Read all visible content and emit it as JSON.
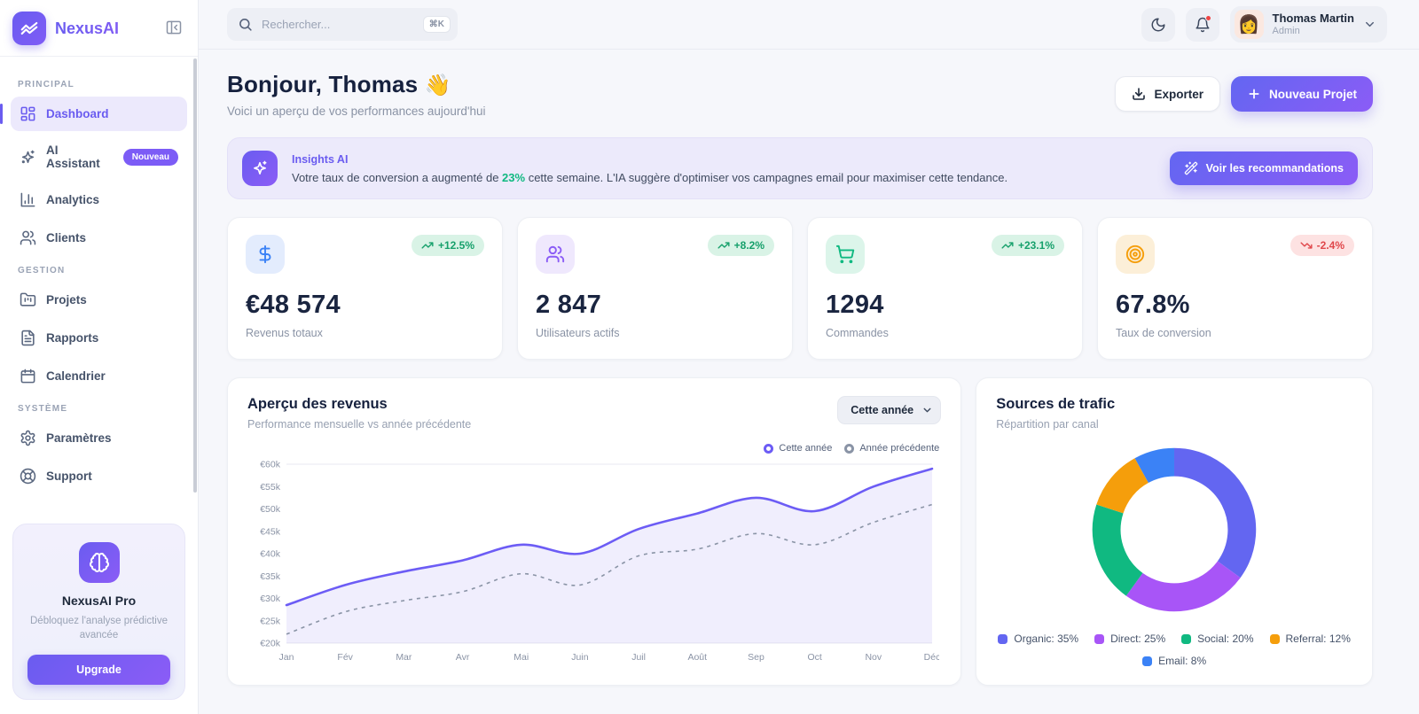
{
  "app": {
    "name": "NexusAI",
    "accent": "#6a5cf0"
  },
  "sidebar": {
    "sections": [
      {
        "label": "PRINCIPAL",
        "items": [
          {
            "label": "Dashboard",
            "icon": "dashboard-icon",
            "active": true
          },
          {
            "label": "AI Assistant",
            "icon": "sparkles-icon",
            "badge": "Nouveau"
          },
          {
            "label": "Analytics",
            "icon": "bar-chart-icon"
          },
          {
            "label": "Clients",
            "icon": "users-icon"
          }
        ]
      },
      {
        "label": "GESTION",
        "items": [
          {
            "label": "Projets",
            "icon": "folder-icon"
          },
          {
            "label": "Rapports",
            "icon": "file-icon"
          },
          {
            "label": "Calendrier",
            "icon": "calendar-icon"
          }
        ]
      },
      {
        "label": "SYSTÈME",
        "items": [
          {
            "label": "Paramètres",
            "icon": "gear-icon"
          },
          {
            "label": "Support",
            "icon": "life-buoy-icon"
          }
        ]
      }
    ],
    "pro_card": {
      "title": "NexusAI Pro",
      "description": "Débloquez l'analyse prédictive avancée",
      "button": "Upgrade",
      "icon": "brain-icon"
    }
  },
  "topbar": {
    "search": {
      "placeholder": "Rechercher...",
      "shortcut": "⌘K"
    },
    "user": {
      "name": "Thomas Martin",
      "role": "Admin",
      "avatar": "👩"
    }
  },
  "header": {
    "greeting": "Bonjour, Thomas",
    "wave": "👋",
    "subtitle": "Voici un aperçu de vos performances aujourd'hui",
    "export_label": "Exporter",
    "new_project_label": "Nouveau Projet"
  },
  "insights": {
    "title": "Insights AI",
    "text_before": "Votre taux de conversion a augmenté de ",
    "highlight": "23%",
    "text_after": " cette semaine. L'IA suggère d'optimiser vos campagnes email pour maximiser cette tendance.",
    "button": "Voir les recommandations"
  },
  "stats": [
    {
      "icon": "dollar-icon",
      "icon_color": "#3b82f6",
      "icon_bg": "#e3ecfd",
      "trend": "+12.5%",
      "trend_dir": "up",
      "value": "€48 574",
      "label": "Revenus totaux"
    },
    {
      "icon": "users-icon",
      "icon_color": "#8b5cf6",
      "icon_bg": "#efe8fd",
      "trend": "+8.2%",
      "trend_dir": "up",
      "value": "2 847",
      "label": "Utilisateurs actifs"
    },
    {
      "icon": "cart-icon",
      "icon_color": "#10b981",
      "icon_bg": "#dcf5ea",
      "trend": "+23.1%",
      "trend_dir": "up",
      "value": "1294",
      "label": "Commandes"
    },
    {
      "icon": "target-icon",
      "icon_color": "#f59e0b",
      "icon_bg": "#fcefd8",
      "trend": "-2.4%",
      "trend_dir": "down",
      "value": "67.8%",
      "label": "Taux de conversion"
    }
  ],
  "chart_data": [
    {
      "type": "area",
      "title": "Aperçu des revenus",
      "subtitle": "Performance mensuelle vs année précédente",
      "select_value": "Cette année",
      "x": [
        "Jan",
        "Fév",
        "Mar",
        "Avr",
        "Mai",
        "Juin",
        "Juil",
        "Août",
        "Sep",
        "Oct",
        "Nov",
        "Déc"
      ],
      "series": [
        {
          "name": "Cette année",
          "color": "#6c5cf5",
          "style": "solid",
          "values": [
            28.5,
            33,
            36,
            38.5,
            42,
            40,
            45.5,
            49,
            52.5,
            49.5,
            55,
            59
          ]
        },
        {
          "name": "Année précédente",
          "color": "#8a94a6",
          "style": "dashed",
          "values": [
            22,
            27,
            29.5,
            31.5,
            35.5,
            33,
            39.5,
            41,
            44.5,
            42,
            47,
            51
          ]
        }
      ],
      "unit": "k€",
      "ylim": [
        20,
        60
      ],
      "ytick_step": 5,
      "ytick_format": "€{v}k",
      "grid": false,
      "legend_position": "top-right"
    },
    {
      "type": "pie",
      "donut": true,
      "title": "Sources de trafic",
      "subtitle": "Répartition par canal",
      "segments": [
        {
          "label": "Organic",
          "value": 35,
          "color": "#6366f1"
        },
        {
          "label": "Direct",
          "value": 25,
          "color": "#a855f7"
        },
        {
          "label": "Social",
          "value": 20,
          "color": "#10b981"
        },
        {
          "label": "Referral",
          "value": 12,
          "color": "#f59e0b"
        },
        {
          "label": "Email",
          "value": 8,
          "color": "#3b82f6"
        }
      ],
      "legend_position": "bottom"
    }
  ]
}
